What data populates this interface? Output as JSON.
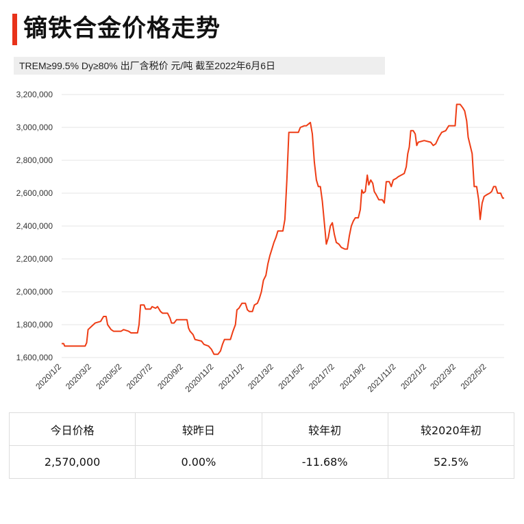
{
  "title": "镝铁合金价格走势",
  "subtitle": "TREM≥99.5% Dy≥80%  出厂含税价 元/吨  截至2022年6月6日",
  "colors": {
    "accent": "#e8321a",
    "line": "#ee3c14",
    "grid": "#e6e6e6"
  },
  "chart_data": {
    "type": "line",
    "title": "",
    "xlabel": "",
    "ylabel": "",
    "ylim": [
      1600000,
      3200000
    ],
    "y_ticks": [
      "1,600,000",
      "1,800,000",
      "2,000,000",
      "2,200,000",
      "2,400,000",
      "2,600,000",
      "2,800,000",
      "3,000,000",
      "3,200,000"
    ],
    "y_tick_values": [
      1600000,
      1800000,
      2000000,
      2200000,
      2400000,
      2600000,
      2800000,
      3000000,
      3200000
    ],
    "x_tick_labels": [
      "2020/1/2",
      "2020/3/2",
      "2020/5/2",
      "2020/7/2",
      "2020/9/2",
      "2020/11/2",
      "2021/1/2",
      "2021/3/2",
      "2021/5/2",
      "2021/7/2",
      "2021/9/2",
      "2021/11/2",
      "2022/1/2",
      "2022/3/2",
      "2022/5/2"
    ],
    "grid": true,
    "series": [
      {
        "name": "",
        "points": [
          [
            "2020-01-02",
            1685000
          ],
          [
            "2020-01-06",
            1685000
          ],
          [
            "2020-01-08",
            1670000
          ],
          [
            "2020-01-20",
            1670000
          ],
          [
            "2020-02-18",
            1670000
          ],
          [
            "2020-02-21",
            1690000
          ],
          [
            "2020-02-24",
            1770000
          ],
          [
            "2020-03-02",
            1790000
          ],
          [
            "2020-03-09",
            1810000
          ],
          [
            "2020-03-20",
            1820000
          ],
          [
            "2020-03-26",
            1850000
          ],
          [
            "2020-03-31",
            1850000
          ],
          [
            "2020-04-03",
            1800000
          ],
          [
            "2020-04-10",
            1770000
          ],
          [
            "2020-04-15",
            1760000
          ],
          [
            "2020-04-30",
            1760000
          ],
          [
            "2020-05-05",
            1770000
          ],
          [
            "2020-05-15",
            1760000
          ],
          [
            "2020-05-20",
            1750000
          ],
          [
            "2020-06-02",
            1750000
          ],
          [
            "2020-06-05",
            1800000
          ],
          [
            "2020-06-08",
            1920000
          ],
          [
            "2020-06-15",
            1920000
          ],
          [
            "2020-06-18",
            1895000
          ],
          [
            "2020-06-28",
            1895000
          ],
          [
            "2020-07-01",
            1910000
          ],
          [
            "2020-07-08",
            1900000
          ],
          [
            "2020-07-12",
            1910000
          ],
          [
            "2020-07-18",
            1880000
          ],
          [
            "2020-07-22",
            1870000
          ],
          [
            "2020-08-01",
            1870000
          ],
          [
            "2020-08-06",
            1840000
          ],
          [
            "2020-08-09",
            1810000
          ],
          [
            "2020-08-14",
            1810000
          ],
          [
            "2020-08-19",
            1830000
          ],
          [
            "2020-09-01",
            1830000
          ],
          [
            "2020-09-09",
            1830000
          ],
          [
            "2020-09-12",
            1780000
          ],
          [
            "2020-09-15",
            1760000
          ],
          [
            "2020-09-21",
            1740000
          ],
          [
            "2020-09-25",
            1710000
          ],
          [
            "2020-10-08",
            1700000
          ],
          [
            "2020-10-13",
            1680000
          ],
          [
            "2020-10-22",
            1670000
          ],
          [
            "2020-10-28",
            1650000
          ],
          [
            "2020-11-02",
            1620000
          ],
          [
            "2020-11-10",
            1620000
          ],
          [
            "2020-11-15",
            1640000
          ],
          [
            "2020-11-19",
            1680000
          ],
          [
            "2020-11-23",
            1710000
          ],
          [
            "2020-12-05",
            1710000
          ],
          [
            "2020-12-10",
            1760000
          ],
          [
            "2020-12-15",
            1800000
          ],
          [
            "2020-12-18",
            1890000
          ],
          [
            "2020-12-22",
            1900000
          ],
          [
            "2020-12-28",
            1930000
          ],
          [
            "2021-01-04",
            1930000
          ],
          [
            "2021-01-08",
            1890000
          ],
          [
            "2021-01-12",
            1880000
          ],
          [
            "2021-01-18",
            1880000
          ],
          [
            "2021-01-22",
            1920000
          ],
          [
            "2021-01-28",
            1930000
          ],
          [
            "2021-02-01",
            1960000
          ],
          [
            "2021-02-05",
            2000000
          ],
          [
            "2021-02-09",
            2070000
          ],
          [
            "2021-02-14",
            2100000
          ],
          [
            "2021-02-18",
            2170000
          ],
          [
            "2021-02-22",
            2220000
          ],
          [
            "2021-02-26",
            2260000
          ],
          [
            "2021-03-02",
            2300000
          ],
          [
            "2021-03-06",
            2330000
          ],
          [
            "2021-03-10",
            2370000
          ],
          [
            "2021-03-20",
            2370000
          ],
          [
            "2021-03-24",
            2440000
          ],
          [
            "2021-03-28",
            2680000
          ],
          [
            "2021-04-01",
            2970000
          ],
          [
            "2021-04-20",
            2970000
          ],
          [
            "2021-04-24",
            3000000
          ],
          [
            "2021-05-02",
            3010000
          ],
          [
            "2021-05-06",
            3010000
          ],
          [
            "2021-05-10",
            3020000
          ],
          [
            "2021-05-14",
            3030000
          ],
          [
            "2021-05-18",
            2960000
          ],
          [
            "2021-05-22",
            2790000
          ],
          [
            "2021-05-26",
            2680000
          ],
          [
            "2021-05-30",
            2640000
          ],
          [
            "2021-06-03",
            2640000
          ],
          [
            "2021-06-07",
            2550000
          ],
          [
            "2021-06-11",
            2420000
          ],
          [
            "2021-06-15",
            2290000
          ],
          [
            "2021-06-19",
            2330000
          ],
          [
            "2021-06-23",
            2400000
          ],
          [
            "2021-06-27",
            2420000
          ],
          [
            "2021-07-01",
            2350000
          ],
          [
            "2021-07-05",
            2300000
          ],
          [
            "2021-07-10",
            2290000
          ],
          [
            "2021-07-15",
            2270000
          ],
          [
            "2021-07-22",
            2260000
          ],
          [
            "2021-07-27",
            2260000
          ],
          [
            "2021-07-31",
            2340000
          ],
          [
            "2021-08-04",
            2400000
          ],
          [
            "2021-08-08",
            2430000
          ],
          [
            "2021-08-12",
            2450000
          ],
          [
            "2021-08-18",
            2450000
          ],
          [
            "2021-08-22",
            2500000
          ],
          [
            "2021-08-25",
            2620000
          ],
          [
            "2021-08-28",
            2600000
          ],
          [
            "2021-09-01",
            2610000
          ],
          [
            "2021-09-05",
            2710000
          ],
          [
            "2021-09-08",
            2650000
          ],
          [
            "2021-09-12",
            2680000
          ],
          [
            "2021-09-16",
            2660000
          ],
          [
            "2021-09-19",
            2610000
          ],
          [
            "2021-09-23",
            2590000
          ],
          [
            "2021-09-28",
            2560000
          ],
          [
            "2021-10-05",
            2560000
          ],
          [
            "2021-10-09",
            2540000
          ],
          [
            "2021-10-13",
            2670000
          ],
          [
            "2021-10-19",
            2670000
          ],
          [
            "2021-10-23",
            2640000
          ],
          [
            "2021-10-27",
            2680000
          ],
          [
            "2021-11-02",
            2690000
          ],
          [
            "2021-11-06",
            2700000
          ],
          [
            "2021-11-12",
            2710000
          ],
          [
            "2021-11-18",
            2720000
          ],
          [
            "2021-11-22",
            2760000
          ],
          [
            "2021-11-25",
            2840000
          ],
          [
            "2021-11-28",
            2880000
          ],
          [
            "2021-12-01",
            2980000
          ],
          [
            "2021-12-06",
            2980000
          ],
          [
            "2021-12-10",
            2960000
          ],
          [
            "2021-12-13",
            2890000
          ],
          [
            "2021-12-16",
            2910000
          ],
          [
            "2021-12-28",
            2920000
          ],
          [
            "2022-01-10",
            2910000
          ],
          [
            "2022-01-15",
            2890000
          ],
          [
            "2022-01-20",
            2900000
          ],
          [
            "2022-01-26",
            2940000
          ],
          [
            "2022-02-01",
            2970000
          ],
          [
            "2022-02-09",
            2980000
          ],
          [
            "2022-02-15",
            3010000
          ],
          [
            "2022-02-28",
            3010000
          ],
          [
            "2022-03-03",
            3140000
          ],
          [
            "2022-03-10",
            3140000
          ],
          [
            "2022-03-15",
            3120000
          ],
          [
            "2022-03-19",
            3100000
          ],
          [
            "2022-03-23",
            3040000
          ],
          [
            "2022-03-26",
            2940000
          ],
          [
            "2022-03-30",
            2890000
          ],
          [
            "2022-04-03",
            2840000
          ],
          [
            "2022-04-07",
            2640000
          ],
          [
            "2022-04-12",
            2640000
          ],
          [
            "2022-04-16",
            2560000
          ],
          [
            "2022-04-19",
            2440000
          ],
          [
            "2022-04-23",
            2540000
          ],
          [
            "2022-04-27",
            2580000
          ],
          [
            "2022-05-02",
            2590000
          ],
          [
            "2022-05-08",
            2600000
          ],
          [
            "2022-05-12",
            2610000
          ],
          [
            "2022-05-16",
            2640000
          ],
          [
            "2022-05-20",
            2640000
          ],
          [
            "2022-05-24",
            2600000
          ],
          [
            "2022-05-30",
            2600000
          ],
          [
            "2022-06-03",
            2570000
          ],
          [
            "2022-06-06",
            2570000
          ]
        ]
      }
    ]
  },
  "stats": {
    "headers": [
      "今日价格",
      "较昨日",
      "较年初",
      "较2020年初"
    ],
    "values": [
      "2,570,000",
      "0.00%",
      "-11.68%",
      "52.5%"
    ]
  }
}
